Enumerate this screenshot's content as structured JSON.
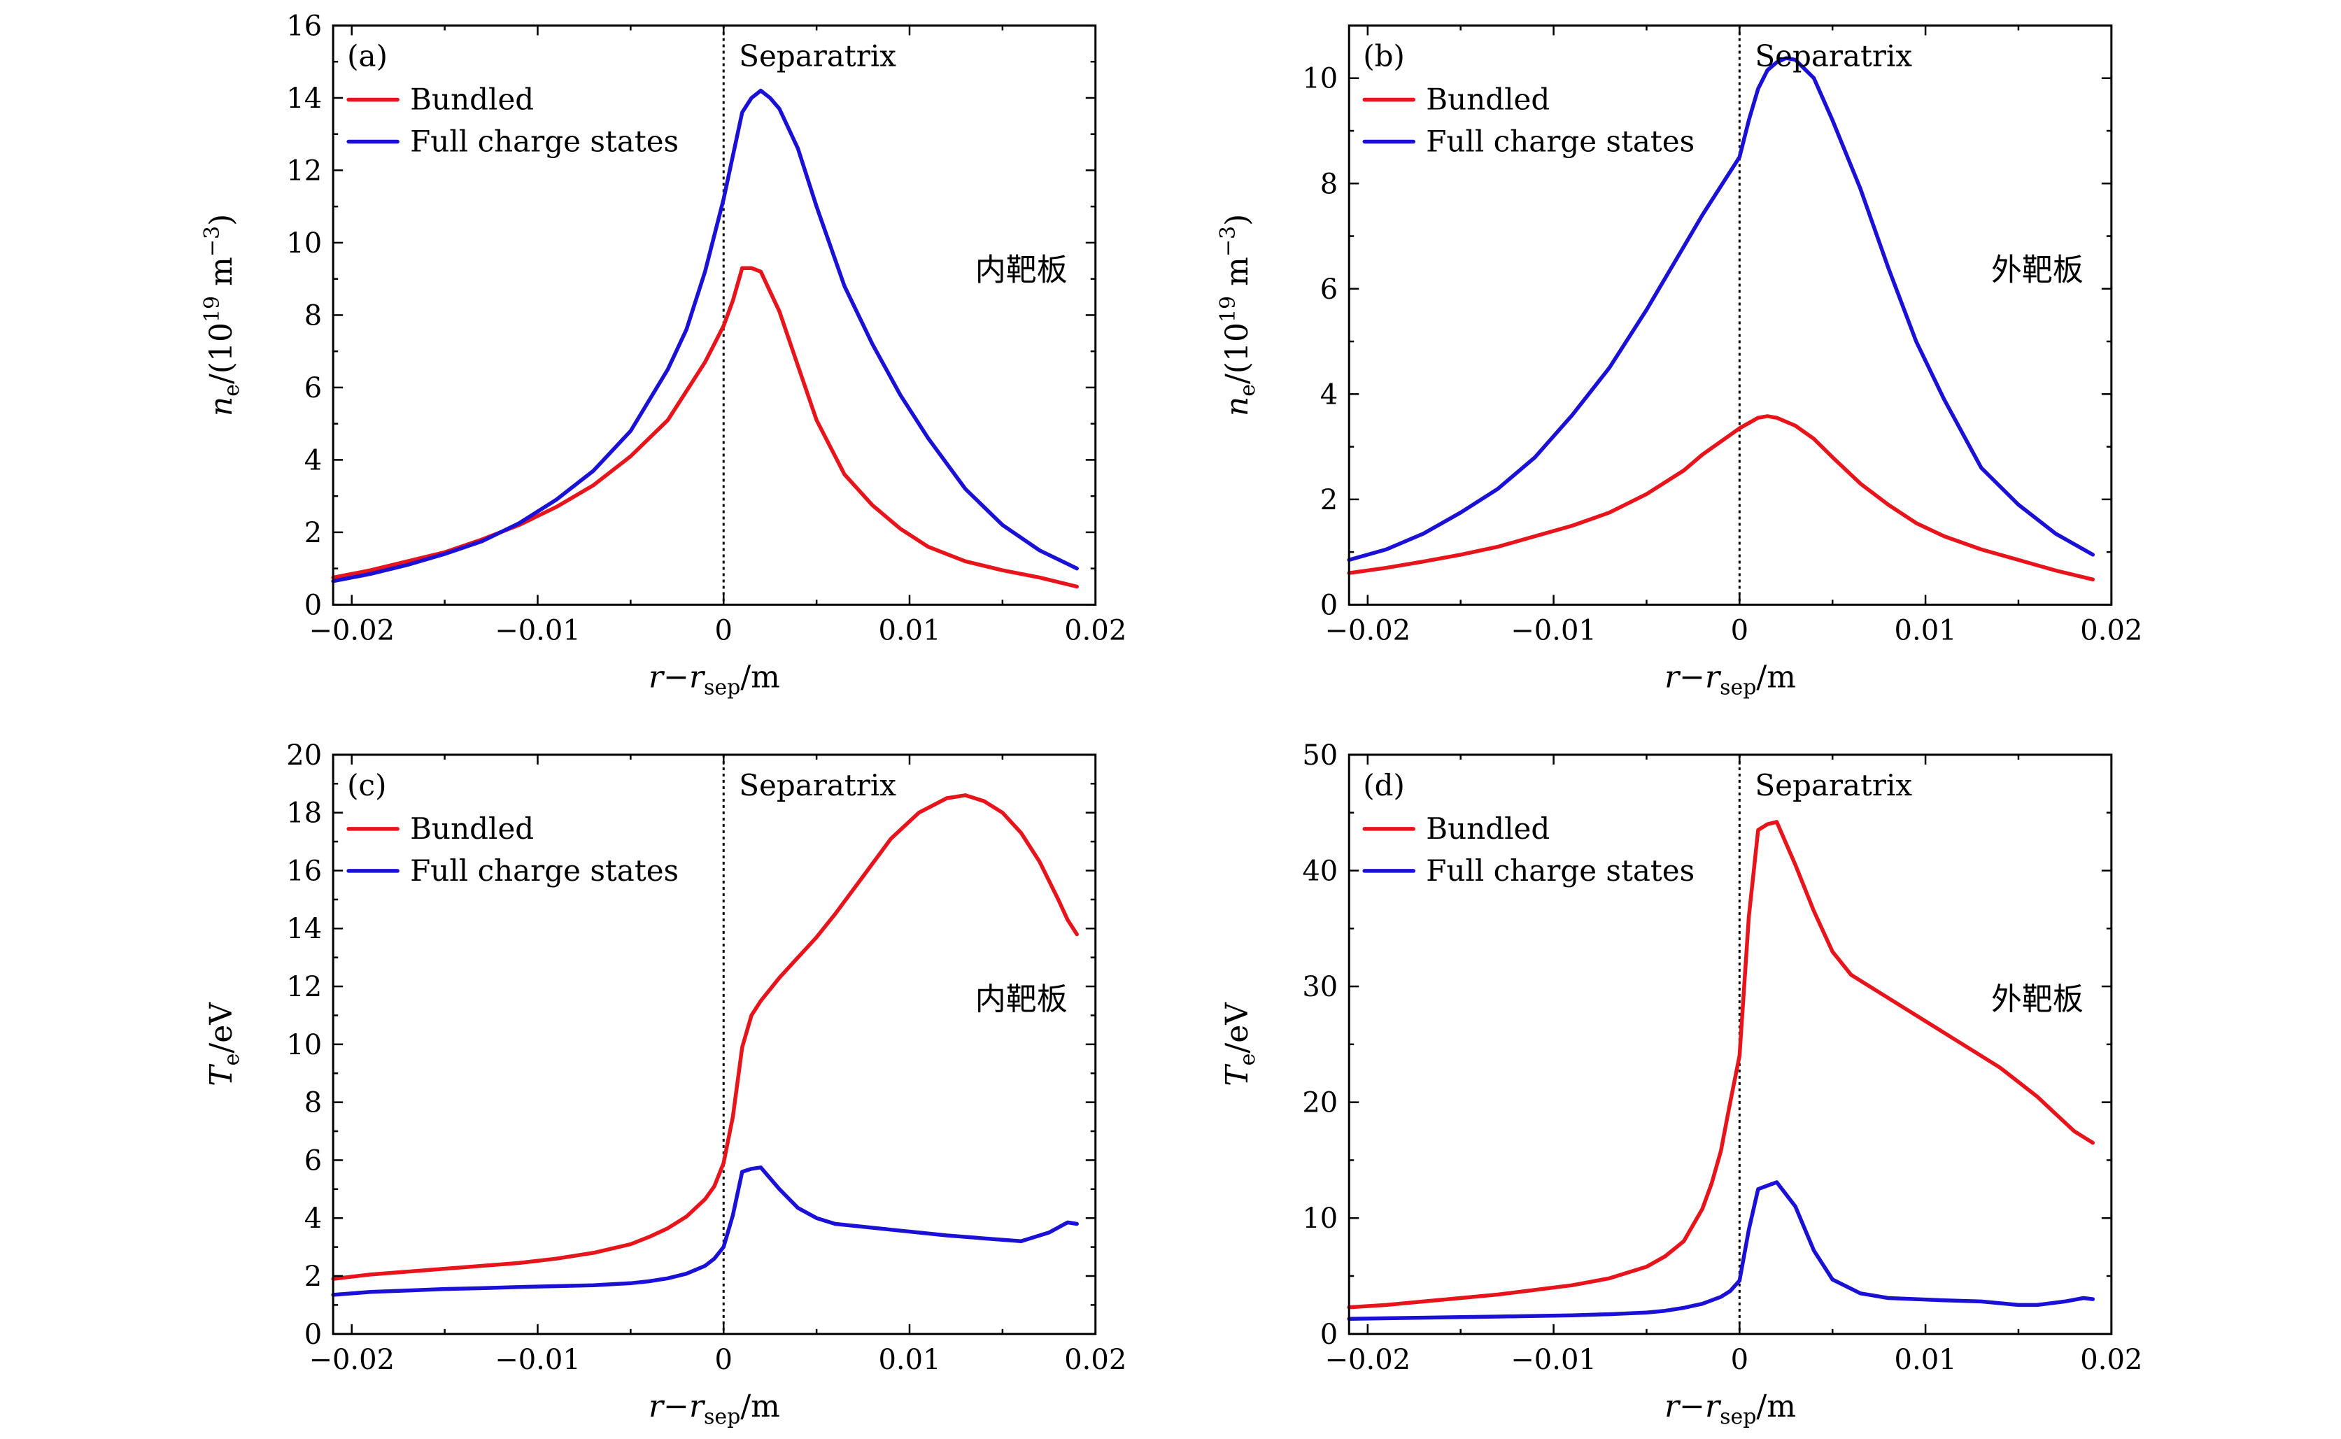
{
  "colors": {
    "bundled": "#e8141c",
    "full": "#1a10d6"
  },
  "chart_data": [
    {
      "type": "line",
      "panel_label": "(a)",
      "xlabel": "r − r_sep/m",
      "xlabel_parts": {
        "a": "r",
        "op": "−",
        "b": "r",
        "sub": "sep",
        "unit": "/m"
      },
      "ylabel": "n_e/(10^19 m^-3)",
      "ylabel_parts": {
        "main": "n",
        "sub": "e",
        "mid": "/(10",
        "sup": "19",
        "mid2": " m",
        "sup2": "−3",
        "end": ")"
      },
      "xlim": [
        -0.021,
        0.02
      ],
      "ylim": [
        0,
        16
      ],
      "xticks": [
        -0.02,
        -0.01,
        0,
        0.01,
        0.02
      ],
      "xtick_labels": [
        "−0.02",
        "−0.01",
        "0",
        "0.01",
        "0.02"
      ],
      "yticks": [
        0,
        2,
        4,
        6,
        8,
        10,
        12,
        14,
        16
      ],
      "ytick_labels": [
        "0",
        "2",
        "4",
        "6",
        "8",
        "10",
        "12",
        "14",
        "16"
      ],
      "separatrix_label": "Separatrix",
      "annotation": "内靶板",
      "legend": [
        "Bundled",
        "Full charge states"
      ],
      "series": [
        {
          "name": "Bundled",
          "x": [
            -0.021,
            -0.019,
            -0.017,
            -0.015,
            -0.013,
            -0.011,
            -0.009,
            -0.007,
            -0.005,
            -0.003,
            -0.002,
            -0.001,
            0,
            0.0005,
            0.001,
            0.0015,
            0.002,
            0.003,
            0.004,
            0.005,
            0.0065,
            0.008,
            0.0095,
            0.011,
            0.013,
            0.015,
            0.017,
            0.019
          ],
          "y": [
            0.75,
            0.95,
            1.2,
            1.45,
            1.8,
            2.2,
            2.7,
            3.3,
            4.1,
            5.1,
            5.9,
            6.7,
            7.7,
            8.4,
            9.3,
            9.3,
            9.2,
            8.1,
            6.6,
            5.1,
            3.6,
            2.75,
            2.1,
            1.6,
            1.2,
            0.95,
            0.75,
            0.5
          ]
        },
        {
          "name": "Full charge states",
          "x": [
            -0.021,
            -0.019,
            -0.017,
            -0.015,
            -0.013,
            -0.011,
            -0.009,
            -0.007,
            -0.005,
            -0.003,
            -0.002,
            -0.001,
            0,
            0.0005,
            0.001,
            0.0015,
            0.002,
            0.0025,
            0.003,
            0.004,
            0.005,
            0.0065,
            0.008,
            0.0095,
            0.011,
            0.013,
            0.015,
            0.017,
            0.019
          ],
          "y": [
            0.65,
            0.85,
            1.1,
            1.4,
            1.75,
            2.25,
            2.9,
            3.7,
            4.8,
            6.5,
            7.6,
            9.2,
            11.2,
            12.4,
            13.6,
            14.0,
            14.2,
            14.0,
            13.7,
            12.6,
            11.0,
            8.8,
            7.2,
            5.8,
            4.6,
            3.2,
            2.2,
            1.5,
            1.0
          ]
        }
      ]
    },
    {
      "type": "line",
      "panel_label": "(b)",
      "xlabel": "r − r_sep/m",
      "xlabel_parts": {
        "a": "r",
        "op": "−",
        "b": "r",
        "sub": "sep",
        "unit": "/m"
      },
      "ylabel": "n_e/(10^19 m^-3)",
      "ylabel_parts": {
        "main": "n",
        "sub": "e",
        "mid": "/(10",
        "sup": "19",
        "mid2": " m",
        "sup2": "−3",
        "end": ")"
      },
      "xlim": [
        -0.021,
        0.02
      ],
      "ylim": [
        0,
        11
      ],
      "xticks": [
        -0.02,
        -0.01,
        0,
        0.01,
        0.02
      ],
      "xtick_labels": [
        "−0.02",
        "−0.01",
        "0",
        "0.01",
        "0.02"
      ],
      "yticks": [
        0,
        2,
        4,
        6,
        8,
        10
      ],
      "ytick_labels": [
        "0",
        "2",
        "4",
        "6",
        "8",
        "10"
      ],
      "separatrix_label": "Separatrix",
      "annotation": "外靶板",
      "legend": [
        "Bundled",
        "Full charge states"
      ],
      "series": [
        {
          "name": "Bundled",
          "x": [
            -0.021,
            -0.019,
            -0.017,
            -0.015,
            -0.013,
            -0.011,
            -0.009,
            -0.007,
            -0.005,
            -0.003,
            -0.002,
            -0.001,
            0,
            0.0005,
            0.001,
            0.0015,
            0.002,
            0.003,
            0.004,
            0.005,
            0.0065,
            0.008,
            0.0095,
            0.011,
            0.013,
            0.015,
            0.017,
            0.019
          ],
          "y": [
            0.6,
            0.7,
            0.82,
            0.95,
            1.1,
            1.3,
            1.5,
            1.75,
            2.1,
            2.55,
            2.85,
            3.1,
            3.35,
            3.45,
            3.55,
            3.58,
            3.55,
            3.4,
            3.15,
            2.8,
            2.3,
            1.9,
            1.55,
            1.3,
            1.05,
            0.85,
            0.65,
            0.48
          ]
        },
        {
          "name": "Full charge states",
          "x": [
            -0.021,
            -0.019,
            -0.017,
            -0.015,
            -0.013,
            -0.011,
            -0.009,
            -0.007,
            -0.005,
            -0.003,
            -0.002,
            -0.001,
            0,
            0.0005,
            0.001,
            0.0015,
            0.002,
            0.0025,
            0.003,
            0.004,
            0.005,
            0.0065,
            0.008,
            0.0095,
            0.011,
            0.013,
            0.015,
            0.017,
            0.019
          ],
          "y": [
            0.85,
            1.05,
            1.35,
            1.75,
            2.2,
            2.8,
            3.6,
            4.5,
            5.6,
            6.8,
            7.4,
            7.95,
            8.5,
            9.2,
            9.8,
            10.15,
            10.3,
            10.38,
            10.35,
            10.0,
            9.2,
            7.9,
            6.4,
            5.0,
            3.9,
            2.6,
            1.9,
            1.35,
            0.95
          ]
        }
      ]
    },
    {
      "type": "line",
      "panel_label": "(c)",
      "xlabel": "r − r_sep/m",
      "xlabel_parts": {
        "a": "r",
        "op": "−",
        "b": "r",
        "sub": "sep",
        "unit": "/m"
      },
      "ylabel": "T_e/eV",
      "ylabel_parts": {
        "main": "T",
        "sub": "e",
        "end": "/eV"
      },
      "xlim": [
        -0.021,
        0.02
      ],
      "ylim": [
        0,
        20
      ],
      "xticks": [
        -0.02,
        -0.01,
        0,
        0.01,
        0.02
      ],
      "xtick_labels": [
        "−0.02",
        "−0.01",
        "0",
        "0.01",
        "0.02"
      ],
      "yticks": [
        0,
        2,
        4,
        6,
        8,
        10,
        12,
        14,
        16,
        18,
        20
      ],
      "ytick_labels": [
        "0",
        "2",
        "4",
        "6",
        "8",
        "10",
        "12",
        "14",
        "16",
        "18",
        "20"
      ],
      "separatrix_label": "Separatrix",
      "annotation": "内靶板",
      "legend": [
        "Bundled",
        "Full charge states"
      ],
      "series": [
        {
          "name": "Bundled",
          "x": [
            -0.021,
            -0.019,
            -0.017,
            -0.015,
            -0.013,
            -0.011,
            -0.009,
            -0.007,
            -0.005,
            -0.004,
            -0.003,
            -0.002,
            -0.001,
            -0.0005,
            0,
            0.0005,
            0.001,
            0.0015,
            0.002,
            0.003,
            0.004,
            0.005,
            0.006,
            0.0075,
            0.009,
            0.0105,
            0.012,
            0.013,
            0.014,
            0.015,
            0.016,
            0.017,
            0.018,
            0.0185,
            0.019
          ],
          "y": [
            1.9,
            2.05,
            2.15,
            2.25,
            2.35,
            2.45,
            2.6,
            2.8,
            3.1,
            3.35,
            3.65,
            4.05,
            4.65,
            5.1,
            5.9,
            7.5,
            9.9,
            11.0,
            11.5,
            12.3,
            13.0,
            13.7,
            14.5,
            15.8,
            17.1,
            18.0,
            18.5,
            18.6,
            18.4,
            18.0,
            17.3,
            16.3,
            15.0,
            14.3,
            13.8
          ]
        },
        {
          "name": "Full charge states",
          "x": [
            -0.021,
            -0.019,
            -0.017,
            -0.015,
            -0.013,
            -0.011,
            -0.009,
            -0.007,
            -0.005,
            -0.004,
            -0.003,
            -0.002,
            -0.001,
            -0.0005,
            0,
            0.0005,
            0.001,
            0.0015,
            0.002,
            0.003,
            0.004,
            0.005,
            0.006,
            0.0075,
            0.009,
            0.0105,
            0.012,
            0.014,
            0.016,
            0.0175,
            0.0185,
            0.019
          ],
          "y": [
            1.35,
            1.45,
            1.5,
            1.55,
            1.58,
            1.62,
            1.65,
            1.68,
            1.75,
            1.82,
            1.92,
            2.08,
            2.35,
            2.6,
            3.0,
            4.1,
            5.6,
            5.7,
            5.75,
            5.0,
            4.35,
            4.0,
            3.8,
            3.7,
            3.6,
            3.5,
            3.4,
            3.3,
            3.2,
            3.5,
            3.85,
            3.8
          ]
        }
      ]
    },
    {
      "type": "line",
      "panel_label": "(d)",
      "xlabel": "r − r_sep/m",
      "xlabel_parts": {
        "a": "r",
        "op": "−",
        "b": "r",
        "sub": "sep",
        "unit": "/m"
      },
      "ylabel": "T_e/eV",
      "ylabel_parts": {
        "main": "T",
        "sub": "e",
        "end": "/eV"
      },
      "xlim": [
        -0.021,
        0.02
      ],
      "ylim": [
        0,
        50
      ],
      "xticks": [
        -0.02,
        -0.01,
        0,
        0.01,
        0.02
      ],
      "xtick_labels": [
        "−0.02",
        "−0.01",
        "0",
        "0.01",
        "0.02"
      ],
      "yticks": [
        0,
        10,
        20,
        30,
        40,
        50
      ],
      "ytick_labels": [
        "0",
        "10",
        "20",
        "30",
        "40",
        "50"
      ],
      "separatrix_label": "Separatrix",
      "annotation": "外靶板",
      "legend": [
        "Bundled",
        "Full charge states"
      ],
      "series": [
        {
          "name": "Bundled",
          "x": [
            -0.021,
            -0.019,
            -0.017,
            -0.015,
            -0.013,
            -0.011,
            -0.009,
            -0.007,
            -0.005,
            -0.004,
            -0.003,
            -0.002,
            -0.0015,
            -0.001,
            -0.0005,
            0,
            0.0005,
            0.001,
            0.0015,
            0.002,
            0.003,
            0.004,
            0.005,
            0.006,
            0.0075,
            0.009,
            0.0105,
            0.012,
            0.014,
            0.016,
            0.017,
            0.018,
            0.0185,
            0.019
          ],
          "y": [
            2.3,
            2.5,
            2.8,
            3.1,
            3.4,
            3.8,
            4.2,
            4.8,
            5.8,
            6.7,
            8.0,
            10.8,
            13.0,
            15.8,
            20.0,
            24.0,
            36.0,
            43.5,
            44.0,
            44.2,
            40.5,
            36.5,
            33.0,
            31.0,
            29.5,
            28.0,
            26.5,
            25.0,
            23.0,
            20.5,
            19.0,
            17.5,
            17.0,
            16.5
          ]
        },
        {
          "name": "Full charge states",
          "x": [
            -0.021,
            -0.019,
            -0.017,
            -0.015,
            -0.013,
            -0.011,
            -0.009,
            -0.007,
            -0.005,
            -0.004,
            -0.003,
            -0.002,
            -0.001,
            -0.0005,
            0,
            0.0005,
            0.001,
            0.0015,
            0.002,
            0.003,
            0.004,
            0.005,
            0.0065,
            0.008,
            0.0095,
            0.011,
            0.013,
            0.015,
            0.016,
            0.0175,
            0.0185,
            0.019
          ],
          "y": [
            1.3,
            1.35,
            1.4,
            1.45,
            1.5,
            1.55,
            1.6,
            1.7,
            1.85,
            2.0,
            2.25,
            2.6,
            3.2,
            3.7,
            4.6,
            9.0,
            12.5,
            12.8,
            13.1,
            11.0,
            7.2,
            4.7,
            3.5,
            3.1,
            3.0,
            2.9,
            2.8,
            2.5,
            2.5,
            2.8,
            3.1,
            3.0
          ]
        }
      ]
    }
  ]
}
